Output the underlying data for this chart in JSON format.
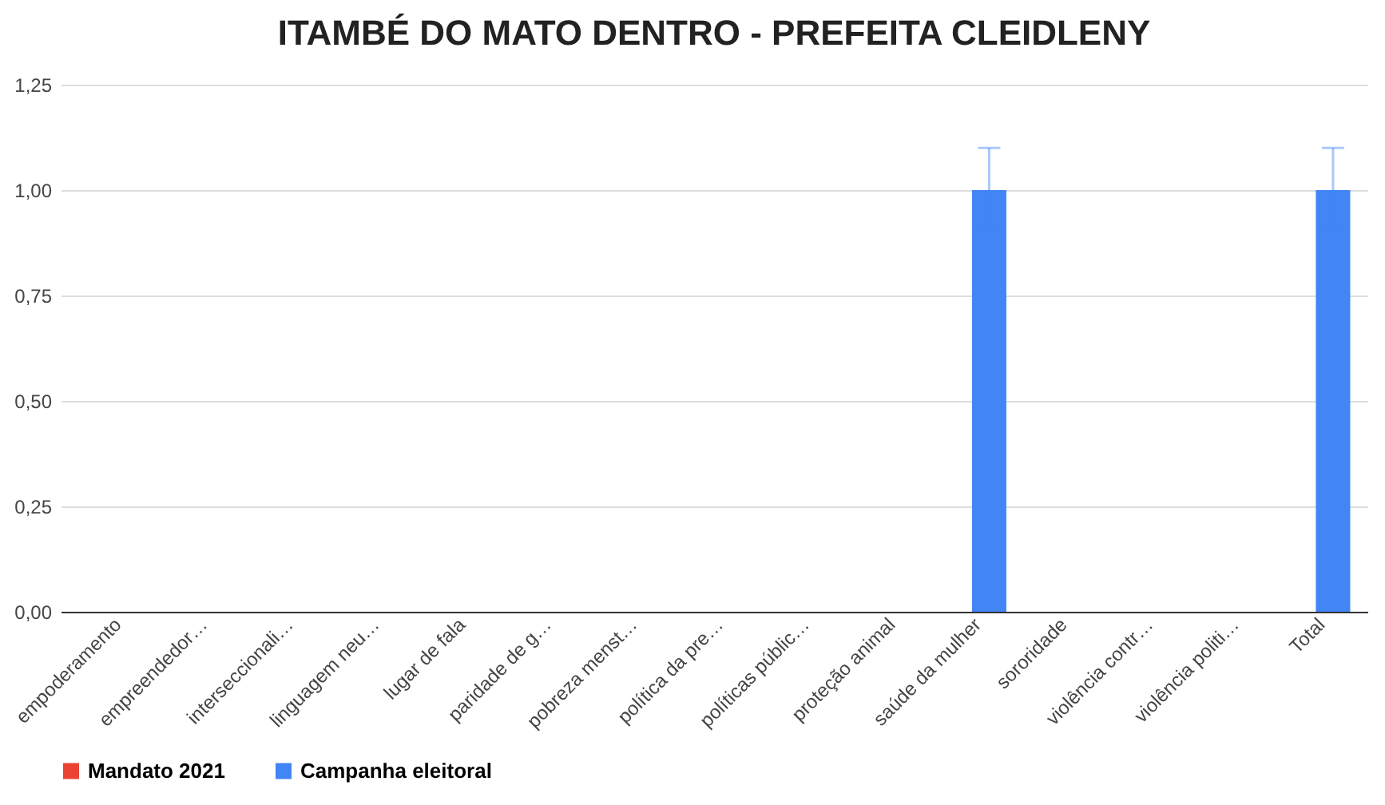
{
  "chart_data": {
    "type": "bar",
    "title": "ITAMBÉ DO MATO DENTRO - PREFEITA CLEIDLENY",
    "categories": [
      "empoderamento",
      "empreendedor…",
      "interseccionali…",
      "linguagem neu…",
      "lugar de fala",
      "paridade de g…",
      "pobreza menst…",
      "política da pre…",
      "políticas públic…",
      "proteção animal",
      "saúde da mulher",
      "sororidade",
      "violência contr…",
      "violência politi…",
      "Total"
    ],
    "series": [
      {
        "name": "Mandato 2021",
        "color": "#ea4335",
        "values": [
          0,
          0,
          0,
          0,
          0,
          0,
          0,
          0,
          0,
          0,
          0,
          0,
          0,
          0,
          0
        ]
      },
      {
        "name": "Campanha eleitoral",
        "color": "#4285f4",
        "values": [
          0,
          0,
          0,
          0,
          0,
          0,
          0,
          0,
          0,
          0,
          1,
          0,
          0,
          0,
          1
        ],
        "errors": [
          null,
          null,
          null,
          null,
          null,
          null,
          null,
          null,
          null,
          null,
          0.1,
          null,
          null,
          null,
          0.1
        ]
      }
    ],
    "ylim": [
      0,
      1.25
    ],
    "yticks": [
      {
        "value": 0,
        "label": "0,00"
      },
      {
        "value": 0.25,
        "label": "0,25"
      },
      {
        "value": 0.5,
        "label": "0,50"
      },
      {
        "value": 0.75,
        "label": "0,75"
      },
      {
        "value": 1,
        "label": "1,00"
      },
      {
        "value": 1.25,
        "label": "1,25"
      }
    ],
    "grid": "y",
    "legend": "bottom"
  }
}
